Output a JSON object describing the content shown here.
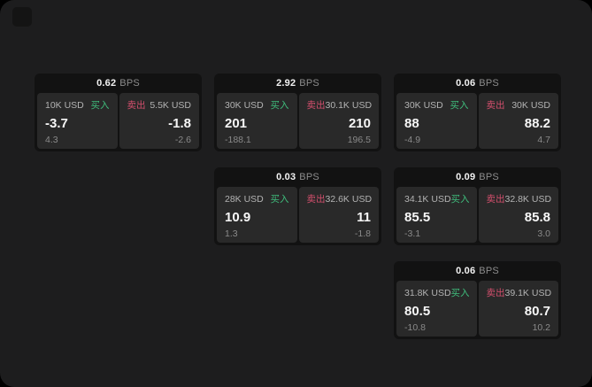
{
  "labels": {
    "bps_unit": "BPS",
    "buy": "买入",
    "sell": "卖出"
  },
  "colors": {
    "buy_green": "#3fbd7c",
    "sell_red": "#d44f6d",
    "card_bg": "#121212",
    "panel_bg": "#292929",
    "window_bg": "#1d1d1e"
  },
  "cards": [
    {
      "bps": "0.62",
      "grid": {
        "row": 1,
        "col": 1
      },
      "buy": {
        "amount": "10K USD",
        "price": "-3.7",
        "sub": "4.3"
      },
      "sell": {
        "amount": "5.5K USD",
        "price": "-1.8",
        "sub": "-2.6"
      }
    },
    {
      "bps": "2.92",
      "grid": {
        "row": 1,
        "col": 2
      },
      "buy": {
        "amount": "30K USD",
        "price": "201",
        "sub": "-188.1"
      },
      "sell": {
        "amount": "30.1K USD",
        "price": "210",
        "sub": "196.5"
      }
    },
    {
      "bps": "0.06",
      "grid": {
        "row": 1,
        "col": 3
      },
      "buy": {
        "amount": "30K USD",
        "price": "88",
        "sub": "-4.9"
      },
      "sell": {
        "amount": "30K USD",
        "price": "88.2",
        "sub": "4.7"
      }
    },
    {
      "bps": "0.03",
      "grid": {
        "row": 2,
        "col": 2
      },
      "buy": {
        "amount": "28K USD",
        "price": "10.9",
        "sub": "1.3"
      },
      "sell": {
        "amount": "32.6K USD",
        "price": "11",
        "sub": "-1.8"
      }
    },
    {
      "bps": "0.09",
      "grid": {
        "row": 2,
        "col": 3
      },
      "buy": {
        "amount": "34.1K USD",
        "price": "85.5",
        "sub": "-3.1"
      },
      "sell": {
        "amount": "32.8K USD",
        "price": "85.8",
        "sub": "3.0"
      }
    },
    {
      "bps": "0.06",
      "grid": {
        "row": 3,
        "col": 3
      },
      "buy": {
        "amount": "31.8K USD",
        "price": "80.5",
        "sub": "-10.8"
      },
      "sell": {
        "amount": "39.1K USD",
        "price": "80.7",
        "sub": "10.2"
      }
    }
  ]
}
